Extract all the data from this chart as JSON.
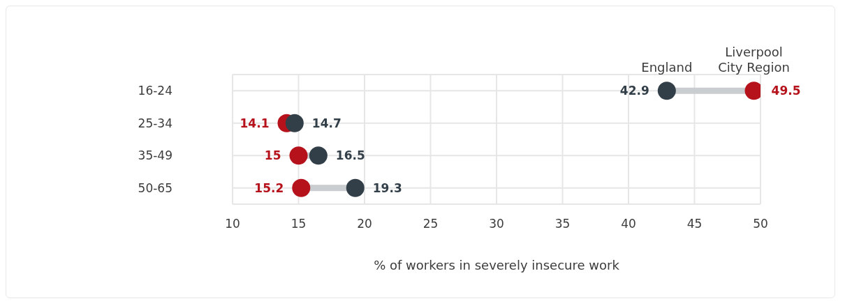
{
  "chart_data": {
    "type": "scatter",
    "orientation": "horizontal",
    "xlabel": "% of workers in severely insecure work",
    "categories": [
      "16-24",
      "25-34",
      "35-49",
      "50-65"
    ],
    "series": [
      {
        "name": "Liverpool City Region",
        "color": "#b5121b",
        "values": [
          49.5,
          14.1,
          15,
          15.2
        ]
      },
      {
        "name": "England",
        "color": "#333f48",
        "values": [
          42.9,
          14.7,
          16.5,
          19.3
        ]
      }
    ],
    "xlim": [
      10,
      50
    ],
    "xticks": [
      10,
      15,
      20,
      25,
      30,
      35,
      40,
      45,
      50
    ],
    "grid": true,
    "data_labels": true,
    "marker": "circle",
    "legend": false
  }
}
